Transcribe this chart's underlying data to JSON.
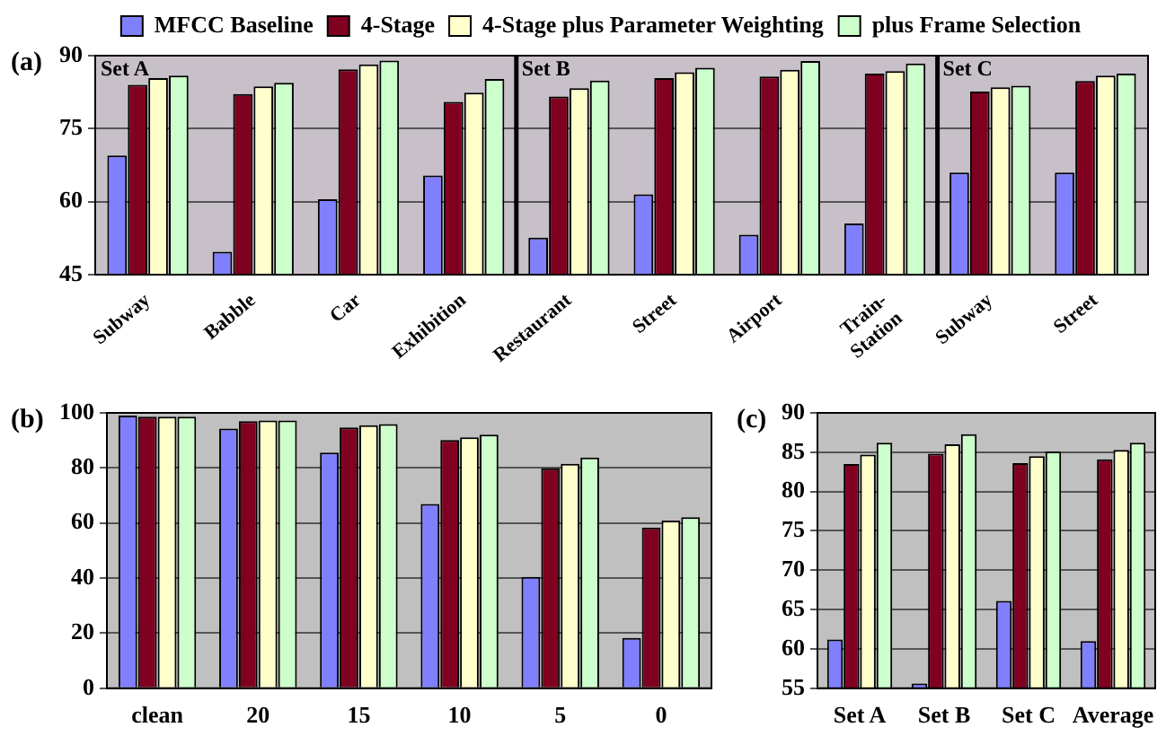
{
  "chart_data": [
    {
      "type": "bar",
      "annotations": [
        "(a)",
        "Set A",
        "Set B",
        "Set C"
      ],
      "categories": [
        "Subway",
        "Babble",
        "Car",
        "Exhibition",
        "Restaurant",
        "Street",
        "Airport",
        "Train-Station",
        "Subway",
        "Street"
      ],
      "series": [
        {
          "name": "MFCC Baseline",
          "color": "#8080ff",
          "values": [
            69.5,
            49.7,
            60.5,
            65.4,
            52.6,
            61.5,
            53.2,
            55.5,
            66.0,
            66.0
          ]
        },
        {
          "name": "4-Stage",
          "color": "#800020",
          "values": [
            84.0,
            82.1,
            87.2,
            80.5,
            81.6,
            85.4,
            85.7,
            86.3,
            82.6,
            84.8
          ]
        },
        {
          "name": "4-Stage plus Parameter Weighting",
          "color": "#ffffcc",
          "values": [
            85.4,
            83.7,
            88.2,
            82.4,
            83.3,
            86.6,
            87.1,
            86.8,
            83.5,
            85.9
          ]
        },
        {
          "name": "plus Frame Selection",
          "color": "#ccffcc",
          "values": [
            85.9,
            84.4,
            89.0,
            85.2,
            84.9,
            87.5,
            88.9,
            88.4,
            83.8,
            86.3
          ]
        }
      ],
      "ylim": [
        45,
        90
      ],
      "yticks": [
        45,
        60,
        75,
        90
      ],
      "grid": "y",
      "legend": "top"
    },
    {
      "type": "bar",
      "annotations": [
        "(b)"
      ],
      "categories": [
        "clean",
        "20",
        "15",
        "10",
        "5",
        "0"
      ],
      "series": [
        {
          "color": "#8080ff",
          "values": [
            99.0,
            94.3,
            85.6,
            66.9,
            40.4,
            18.3
          ]
        },
        {
          "color": "#800020",
          "values": [
            98.6,
            97.0,
            94.7,
            90.1,
            79.9,
            58.4
          ]
        },
        {
          "color": "#ffffcc",
          "values": [
            98.6,
            97.2,
            95.5,
            91.1,
            81.5,
            60.9
          ]
        },
        {
          "color": "#ccffcc",
          "values": [
            98.6,
            97.2,
            95.9,
            92.1,
            83.8,
            62.1
          ]
        }
      ],
      "ylim": [
        0,
        100
      ],
      "yticks": [
        0,
        20,
        40,
        60,
        80,
        100
      ],
      "grid": "y"
    },
    {
      "type": "bar",
      "annotations": [
        "(c)"
      ],
      "categories": [
        "Set A",
        "Set B",
        "Set C",
        "Average"
      ],
      "series": [
        {
          "color": "#8080ff",
          "values": [
            61.2,
            55.6,
            66.1,
            61.0
          ]
        },
        {
          "color": "#800020",
          "values": [
            83.5,
            84.8,
            83.6,
            84.1
          ]
        },
        {
          "color": "#ffffcc",
          "values": [
            84.7,
            86.0,
            84.5,
            85.3
          ]
        },
        {
          "color": "#ccffcc",
          "values": [
            86.2,
            87.3,
            85.1,
            86.2
          ]
        }
      ],
      "ylim": [
        55,
        90
      ],
      "yticks": [
        55,
        60,
        65,
        70,
        75,
        80,
        85,
        90
      ],
      "grid": "y"
    }
  ]
}
